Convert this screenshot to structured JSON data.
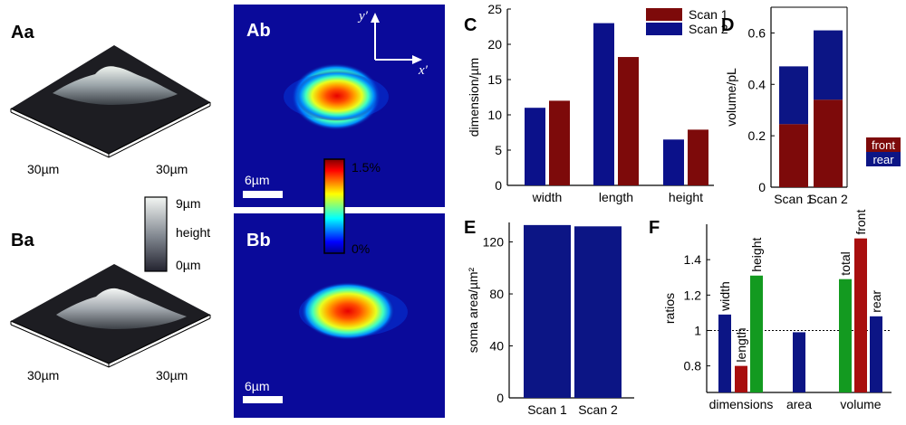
{
  "panels": {
    "Aa": "Aa",
    "Ba": "Ba",
    "Ab": "Ab",
    "Bb": "Bb",
    "C": "C",
    "D": "D",
    "E": "E",
    "F": "F"
  },
  "surface": {
    "dim_label": "30µm",
    "colorbar_top": "9µm",
    "colorbar_mid": "height",
    "colorbar_bottom": "0µm"
  },
  "heatmap": {
    "scalebar": "6µm",
    "colorbar_top": "1.5%",
    "colorbar_bottom": "0%",
    "axis_x": "x′",
    "axis_y": "y′"
  },
  "colors": {
    "scan1": "#7d0a0a",
    "scan2": "#0b118a",
    "green": "#139a20",
    "red": "#a80e0e",
    "navy": "#0c1585",
    "heat_bg": "#0a0a9a"
  },
  "chart_data": [
    {
      "id": "C",
      "type": "bar",
      "categories": [
        "width",
        "length",
        "height"
      ],
      "series": [
        {
          "name": "Scan 1",
          "values": [
            12,
            18.2,
            7.9
          ]
        },
        {
          "name": "Scan 2",
          "values": [
            11,
            23,
            6.5
          ]
        }
      ],
      "ylabel": "dimension/µm",
      "ylim": [
        0,
        25
      ],
      "yticks": [
        0,
        5,
        10,
        15,
        20,
        25
      ],
      "legend": [
        "Scan 1",
        "Scan 2"
      ]
    },
    {
      "id": "D",
      "type": "bar",
      "stacked": true,
      "categories": [
        "Scan 1",
        "Scan 2"
      ],
      "series": [
        {
          "name": "front",
          "values": [
            0.245,
            0.34
          ]
        },
        {
          "name": "rear",
          "values": [
            0.225,
            0.27
          ]
        }
      ],
      "ylabel": "volume/pL",
      "ylim": [
        0,
        0.7
      ],
      "yticks": [
        "0",
        "0.2",
        "0.4",
        "0.6"
      ],
      "legend": [
        "front",
        "rear"
      ]
    },
    {
      "id": "E",
      "type": "bar",
      "categories": [
        "Scan 1",
        "Scan 2"
      ],
      "values": [
        133,
        132
      ],
      "ylabel": "soma area/µm²",
      "ylim": [
        0,
        135
      ],
      "yticks": [
        0,
        40,
        80,
        120
      ]
    },
    {
      "id": "F",
      "type": "bar",
      "groups": [
        "dimensions",
        "area",
        "volume"
      ],
      "bars": [
        {
          "label": "width",
          "value": 1.09,
          "group": "dimensions"
        },
        {
          "label": "length",
          "value": 0.8,
          "group": "dimensions"
        },
        {
          "label": "height",
          "value": 1.31,
          "group": "dimensions"
        },
        {
          "label": "",
          "value": 0.99,
          "group": "area"
        },
        {
          "label": "total",
          "value": 1.29,
          "group": "volume"
        },
        {
          "label": "front",
          "value": 1.52,
          "group": "volume"
        },
        {
          "label": "rear",
          "value": 1.08,
          "group": "volume"
        }
      ],
      "ylabel": "ratios",
      "ylim": [
        0.65,
        1.6
      ],
      "yticks": [
        "0.8",
        "1",
        "1.2",
        "1.4"
      ],
      "reference_line": 1
    }
  ]
}
